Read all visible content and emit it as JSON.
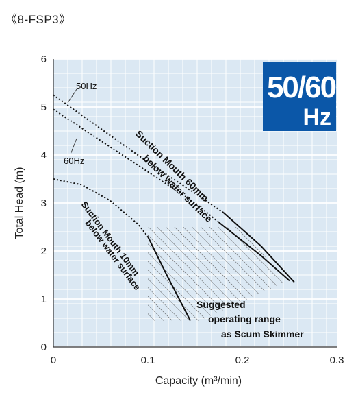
{
  "model": "《8-FSP3》",
  "badge": {
    "line1": "50/60",
    "line2": "Hz",
    "color": "#0b57a8"
  },
  "chart_data": {
    "type": "line",
    "xlabel": "Capacity (m³/min)",
    "ylabel": "Total Head (m)",
    "xlim": [
      0,
      0.3
    ],
    "ylim": [
      0,
      6
    ],
    "x_ticks": [
      "0",
      "0.1",
      "0.2",
      "0.3"
    ],
    "y_ticks": [
      "0",
      "1",
      "2",
      "3",
      "4",
      "5",
      "6"
    ],
    "grid": true,
    "background": "#dbe8f3",
    "series": [
      {
        "name": "50Hz",
        "style": "solid",
        "dotted_until_x": 0.18,
        "points": [
          [
            0,
            5.25
          ],
          [
            0.05,
            4.55
          ],
          [
            0.1,
            3.85
          ],
          [
            0.15,
            3.2
          ],
          [
            0.18,
            2.8
          ],
          [
            0.22,
            2.1
          ],
          [
            0.255,
            1.35
          ]
        ]
      },
      {
        "name": "60Hz",
        "style": "solid",
        "dotted_until_x": 0.175,
        "points": [
          [
            0,
            4.95
          ],
          [
            0.05,
            4.3
          ],
          [
            0.1,
            3.65
          ],
          [
            0.15,
            3.0
          ],
          [
            0.175,
            2.6
          ],
          [
            0.22,
            1.9
          ],
          [
            0.25,
            1.38
          ]
        ]
      },
      {
        "name": "Suction Mouth 10mm below water surface",
        "style": "solid",
        "dotted_until_x": 0.1,
        "points": [
          [
            0,
            3.5
          ],
          [
            0.03,
            3.38
          ],
          [
            0.06,
            3.05
          ],
          [
            0.09,
            2.55
          ],
          [
            0.1,
            2.3
          ],
          [
            0.12,
            1.5
          ],
          [
            0.145,
            0.55
          ]
        ]
      }
    ],
    "annotations": {
      "freq_50": "50Hz",
      "freq_60": "60Hz",
      "curve_60mm_line1": "Suction Mouth 60mm",
      "curve_60mm_line2": "below water surface",
      "curve_10mm_line1": "Suction Mouth 10mm",
      "curve_10mm_line2": "below water surface",
      "range_line1": "Suggested",
      "range_line2": "operating range",
      "range_line3": "as Scum Skimmer"
    },
    "operating_range_polygon": [
      [
        0.1,
        2.5
      ],
      [
        0.2,
        2.5
      ],
      [
        0.245,
        1.35
      ],
      [
        0.155,
        0.55
      ],
      [
        0.1,
        0.55
      ]
    ]
  }
}
